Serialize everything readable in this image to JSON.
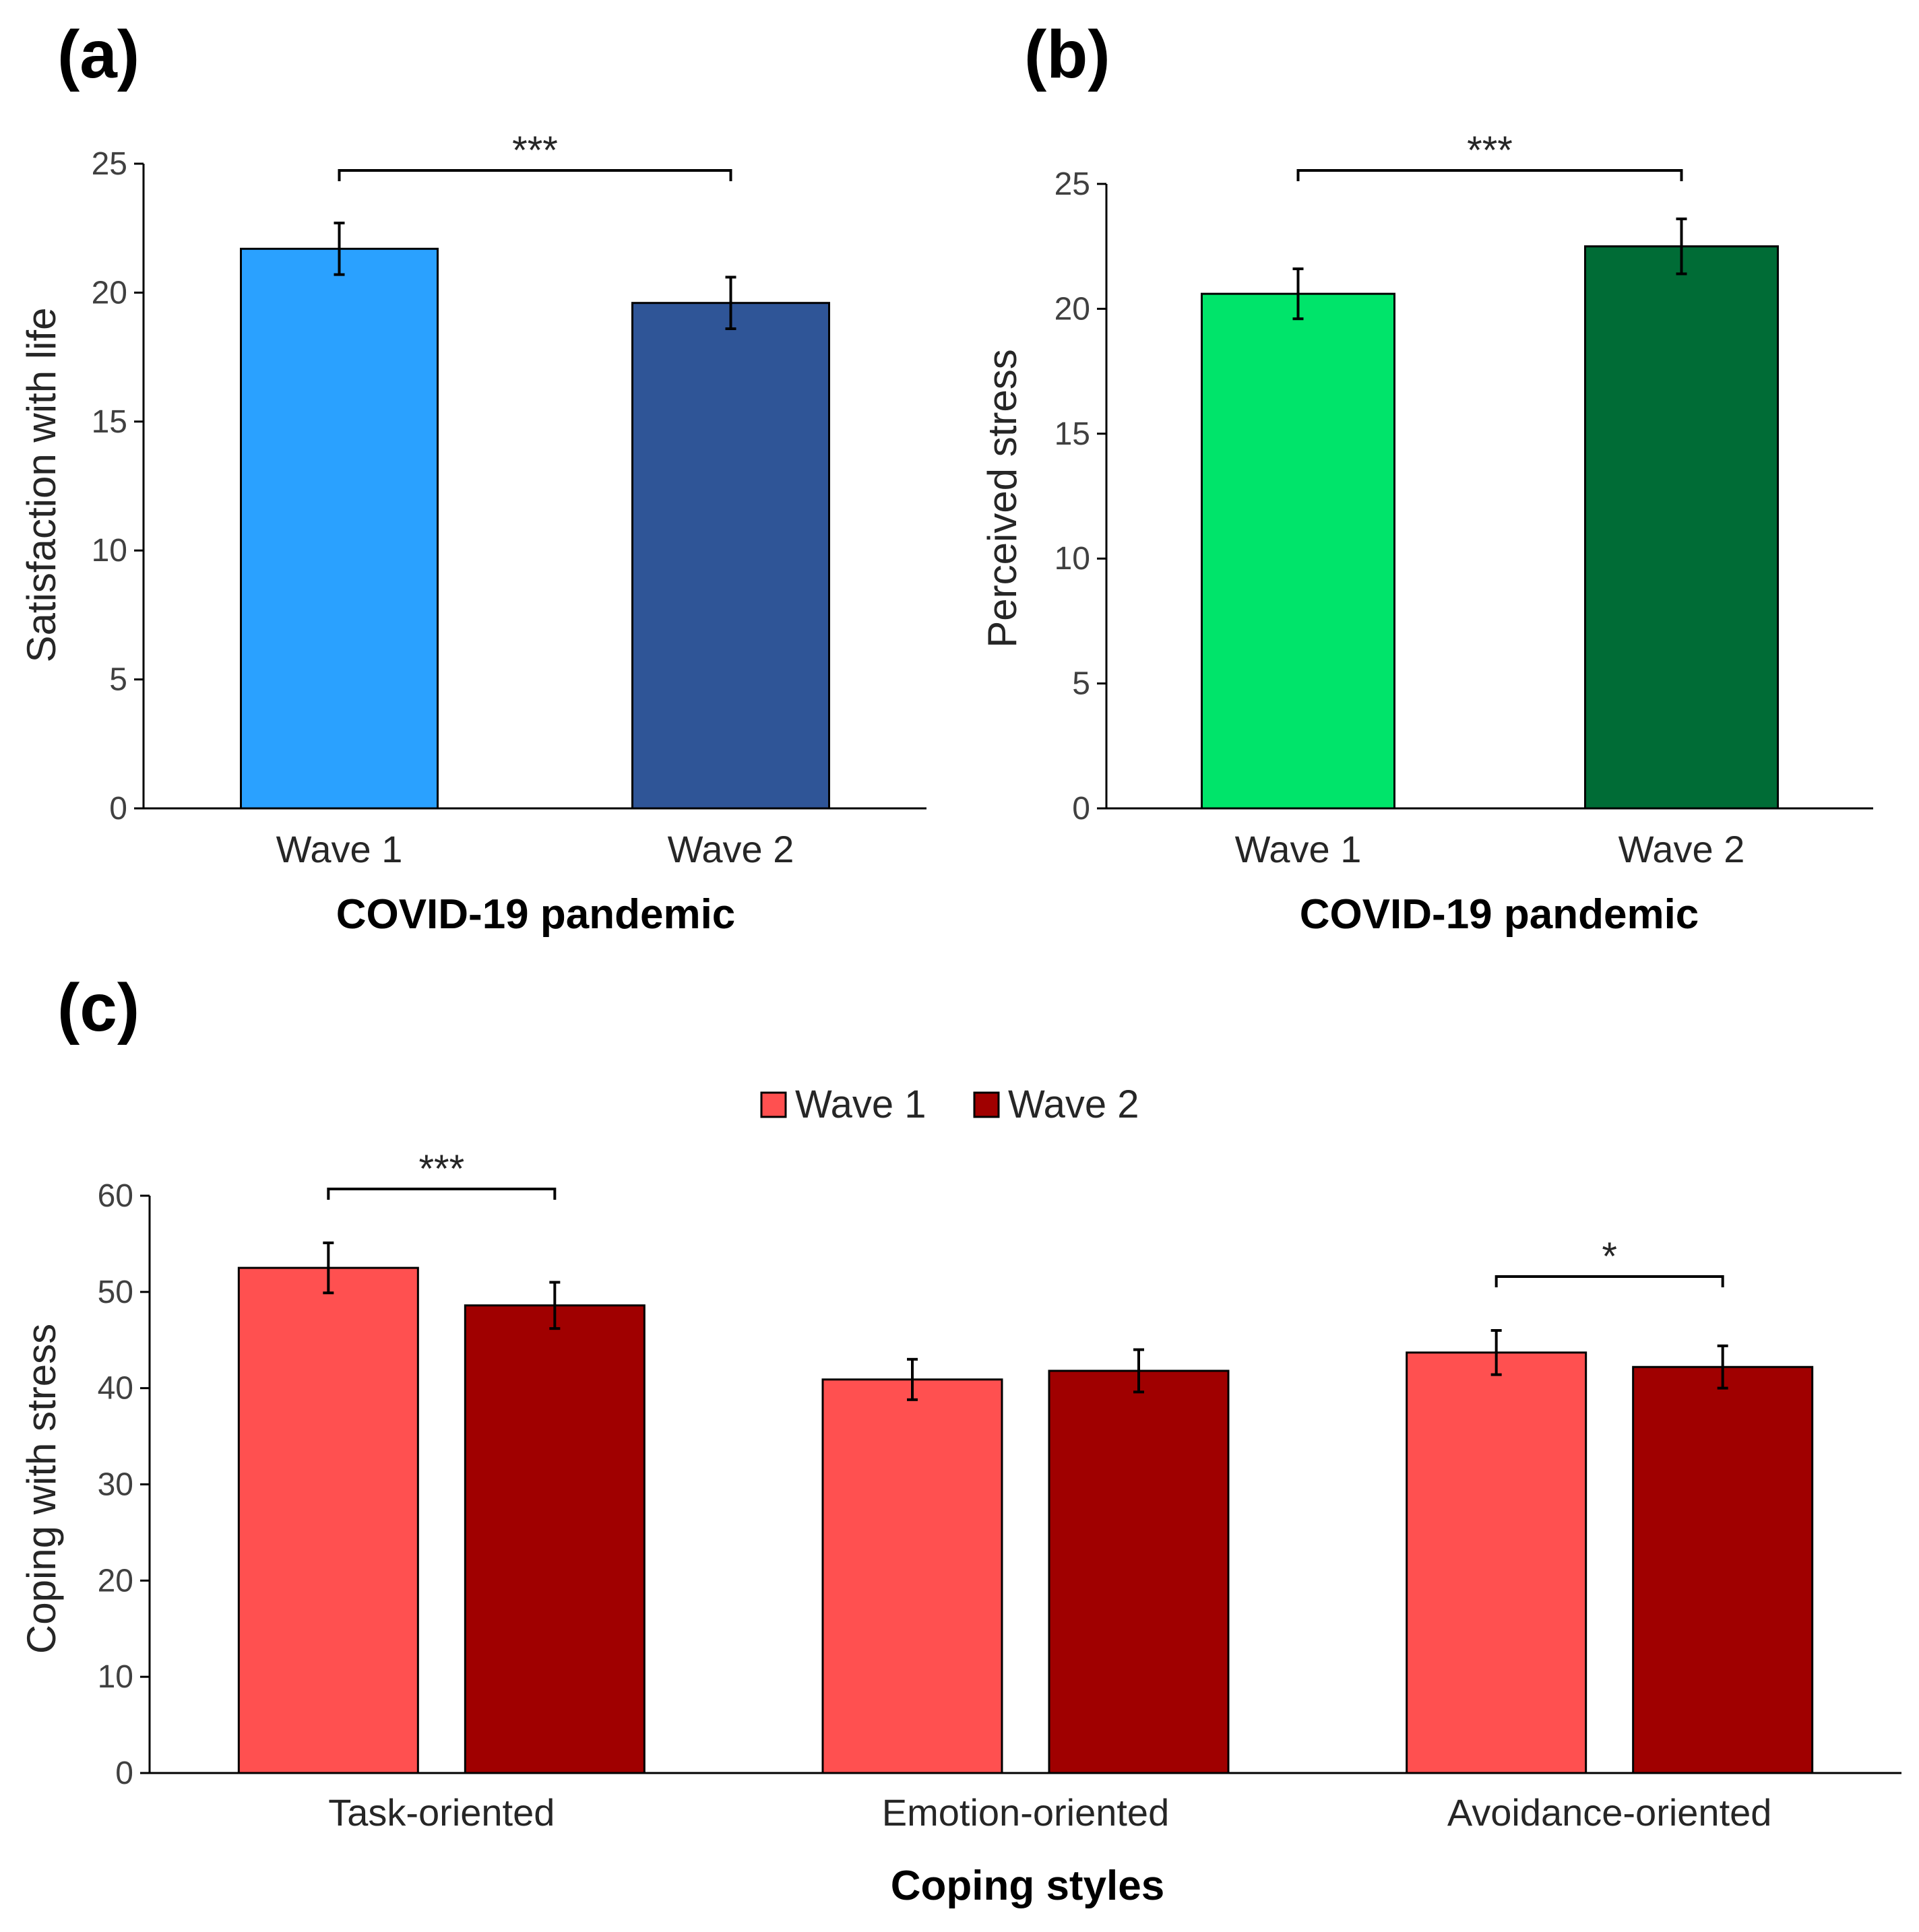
{
  "panels": [
    {
      "label": "(a)",
      "type": "bar",
      "title": "",
      "xlabel": "COVID-19 pandemic",
      "ylabel": "Satisfaction with life",
      "categories": [
        "Wave 1",
        "Wave 2"
      ],
      "values": [
        21.7,
        19.6
      ],
      "errors": [
        1.0,
        1.0
      ],
      "colors": [
        "#2aa1ff",
        "#2f5597"
      ],
      "ylim": [
        0,
        25
      ],
      "yticks": [
        0,
        5,
        10,
        15,
        20,
        25
      ],
      "significance": [
        {
          "from": 0,
          "to": 1,
          "text": "***"
        }
      ]
    },
    {
      "label": "(b)",
      "type": "bar",
      "title": "",
      "xlabel": "COVID-19 pandemic",
      "ylabel": "Perceived stress",
      "categories": [
        "Wave 1",
        "Wave 2"
      ],
      "values": [
        20.6,
        22.5
      ],
      "errors": [
        1.0,
        1.1
      ],
      "colors": [
        "#00e46a",
        "#006c36"
      ],
      "ylim": [
        0,
        25
      ],
      "yticks": [
        0,
        5,
        10,
        15,
        20,
        25
      ],
      "significance": [
        {
          "from": 0,
          "to": 1,
          "text": "***"
        }
      ]
    },
    {
      "label": "(c)",
      "type": "bar",
      "title": "",
      "xlabel": "Coping styles",
      "ylabel": "Coping with stress",
      "categories": [
        "Task-oriented",
        "Emotion-oriented",
        "Avoidance-oriented"
      ],
      "series": [
        {
          "name": "Wave 1",
          "color": "#ff5050",
          "values": [
            52.5,
            40.9,
            43.7
          ],
          "errors": [
            2.6,
            2.1,
            2.3
          ]
        },
        {
          "name": "Wave 2",
          "color": "#a00000",
          "values": [
            48.6,
            41.8,
            42.2
          ],
          "errors": [
            2.4,
            2.2,
            2.2
          ]
        }
      ],
      "ylim": [
        0,
        60
      ],
      "yticks": [
        0,
        10,
        20,
        30,
        40,
        50,
        60
      ],
      "legend_position": "top-center",
      "significance": [
        {
          "category": 0,
          "text": "***"
        },
        {
          "category": 2,
          "text": "*"
        }
      ]
    }
  ]
}
